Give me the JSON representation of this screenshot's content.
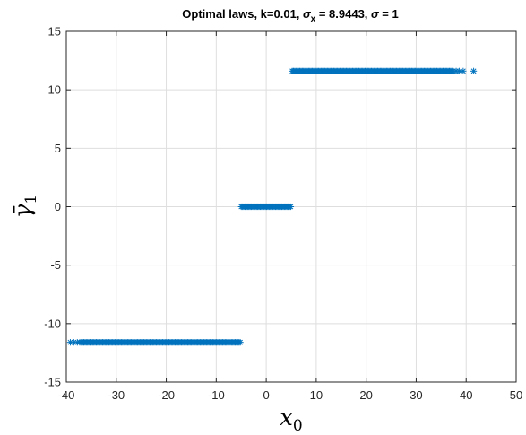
{
  "chart_data": {
    "type": "scatter",
    "title": "Optimal laws, k=0.01, σₓ = 8.9443, σ = 1",
    "title_parts": {
      "prefix": "Optimal laws, k=0.01, ",
      "sigma": "σ",
      "sub_x": "x",
      "mid": " = 8.9443, ",
      "sigma2": "σ",
      "suffix": " = 1"
    },
    "xlabel": {
      "base": "x",
      "sub": "0"
    },
    "ylabel": {
      "base": "γ̄",
      "sub": "1"
    },
    "xlim": [
      -40,
      50
    ],
    "ylim": [
      -15,
      15
    ],
    "xticks": [
      -40,
      -30,
      -20,
      -10,
      0,
      10,
      20,
      30,
      40,
      50
    ],
    "yticks": [
      -15,
      -10,
      -5,
      0,
      5,
      10,
      15
    ],
    "grid": true,
    "marker": "asterisk",
    "color": "#0072bd",
    "series": [
      {
        "segments": [
          {
            "y": -11.6,
            "x_dense": [
              -37.0,
              -5.2
            ],
            "x_sparse": [
              -39.2,
              -38.5,
              -37.8,
              -37.3
            ]
          },
          {
            "y": 0.0,
            "x_dense": [
              -5.0,
              4.9
            ],
            "x_sparse": []
          },
          {
            "y": 11.6,
            "x_dense": [
              5.2,
              37.4
            ],
            "x_sparse": [
              38.0,
              38.6,
              39.4,
              41.5
            ]
          }
        ]
      }
    ]
  }
}
